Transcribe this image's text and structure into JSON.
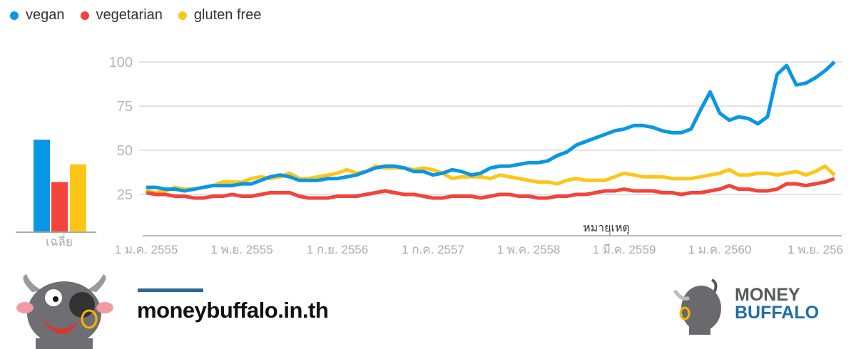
{
  "legend": [
    {
      "label": "vegan",
      "color": "#0a96e6"
    },
    {
      "label": "vegetarian",
      "color": "#f4433b"
    },
    {
      "label": "gluten free",
      "color": "#fdc617"
    }
  ],
  "average": {
    "label": "เฉลี่ย",
    "values": [
      52,
      28,
      38
    ]
  },
  "annotation": "หมายเหตุ",
  "chart_data": {
    "type": "line",
    "title": "",
    "xlabel": "",
    "ylabel": "",
    "ylim": [
      0,
      100
    ],
    "yticks": [
      "100",
      "75",
      "50",
      "25"
    ],
    "ytick_values": [
      100,
      75,
      50,
      25
    ],
    "xticks": [
      "1 ม.ค. 2555",
      "1 พ.ย. 2555",
      "1 ก.ย. 2556",
      "1 ก.ค. 2557",
      "1 พ.ค. 2558",
      "1 มี.ค. 2559",
      "1 ม.ค. 2560",
      "1 พ.ย. 256"
    ],
    "xtick_index": [
      0,
      10,
      20,
      30,
      40,
      50,
      60,
      70
    ],
    "grid": true,
    "legend_position": "top-left",
    "series": [
      {
        "name": "vegan",
        "values": [
          29,
          29,
          28,
          28,
          27,
          28,
          29,
          30,
          30,
          30,
          31,
          31,
          33,
          35,
          36,
          35,
          33,
          33,
          33,
          34,
          34,
          35,
          36,
          38,
          40,
          41,
          41,
          40,
          38,
          38,
          36,
          37,
          39,
          38,
          36,
          37,
          40,
          41,
          41,
          42,
          43,
          43,
          44,
          47,
          49,
          53,
          55,
          57,
          59,
          61,
          62,
          64,
          64,
          63,
          61,
          60,
          60,
          62,
          73,
          83,
          71,
          67,
          69,
          68,
          65,
          69,
          93,
          98,
          87,
          88,
          91,
          95,
          100
        ]
      },
      {
        "name": "vegetarian",
        "values": [
          26,
          25,
          25,
          24,
          24,
          23,
          23,
          24,
          24,
          25,
          24,
          24,
          25,
          26,
          26,
          26,
          24,
          23,
          23,
          23,
          24,
          24,
          24,
          25,
          26,
          27,
          26,
          25,
          25,
          24,
          23,
          23,
          24,
          24,
          24,
          23,
          24,
          25,
          25,
          24,
          24,
          23,
          23,
          24,
          24,
          25,
          25,
          26,
          27,
          27,
          28,
          27,
          27,
          27,
          26,
          26,
          25,
          26,
          26,
          27,
          28,
          30,
          28,
          28,
          27,
          27,
          28,
          31,
          31,
          30,
          31,
          32,
          34
        ]
      },
      {
        "name": "gluten free",
        "values": [
          27,
          26,
          27,
          29,
          28,
          28,
          29,
          30,
          32,
          32,
          32,
          34,
          35,
          34,
          35,
          37,
          34,
          34,
          35,
          36,
          37,
          39,
          37,
          38,
          41,
          40,
          40,
          40,
          39,
          40,
          39,
          37,
          34,
          35,
          35,
          35,
          34,
          36,
          35,
          34,
          33,
          32,
          32,
          31,
          33,
          34,
          33,
          33,
          33,
          35,
          37,
          36,
          35,
          35,
          35,
          34,
          34,
          34,
          35,
          36,
          37,
          39,
          36,
          36,
          37,
          37,
          36,
          37,
          38,
          36,
          38,
          41,
          36
        ]
      }
    ]
  },
  "footer": {
    "url": "moneybuffalo.in.th",
    "brand_top": "MONEY",
    "brand_bottom": "BUFFALO"
  }
}
